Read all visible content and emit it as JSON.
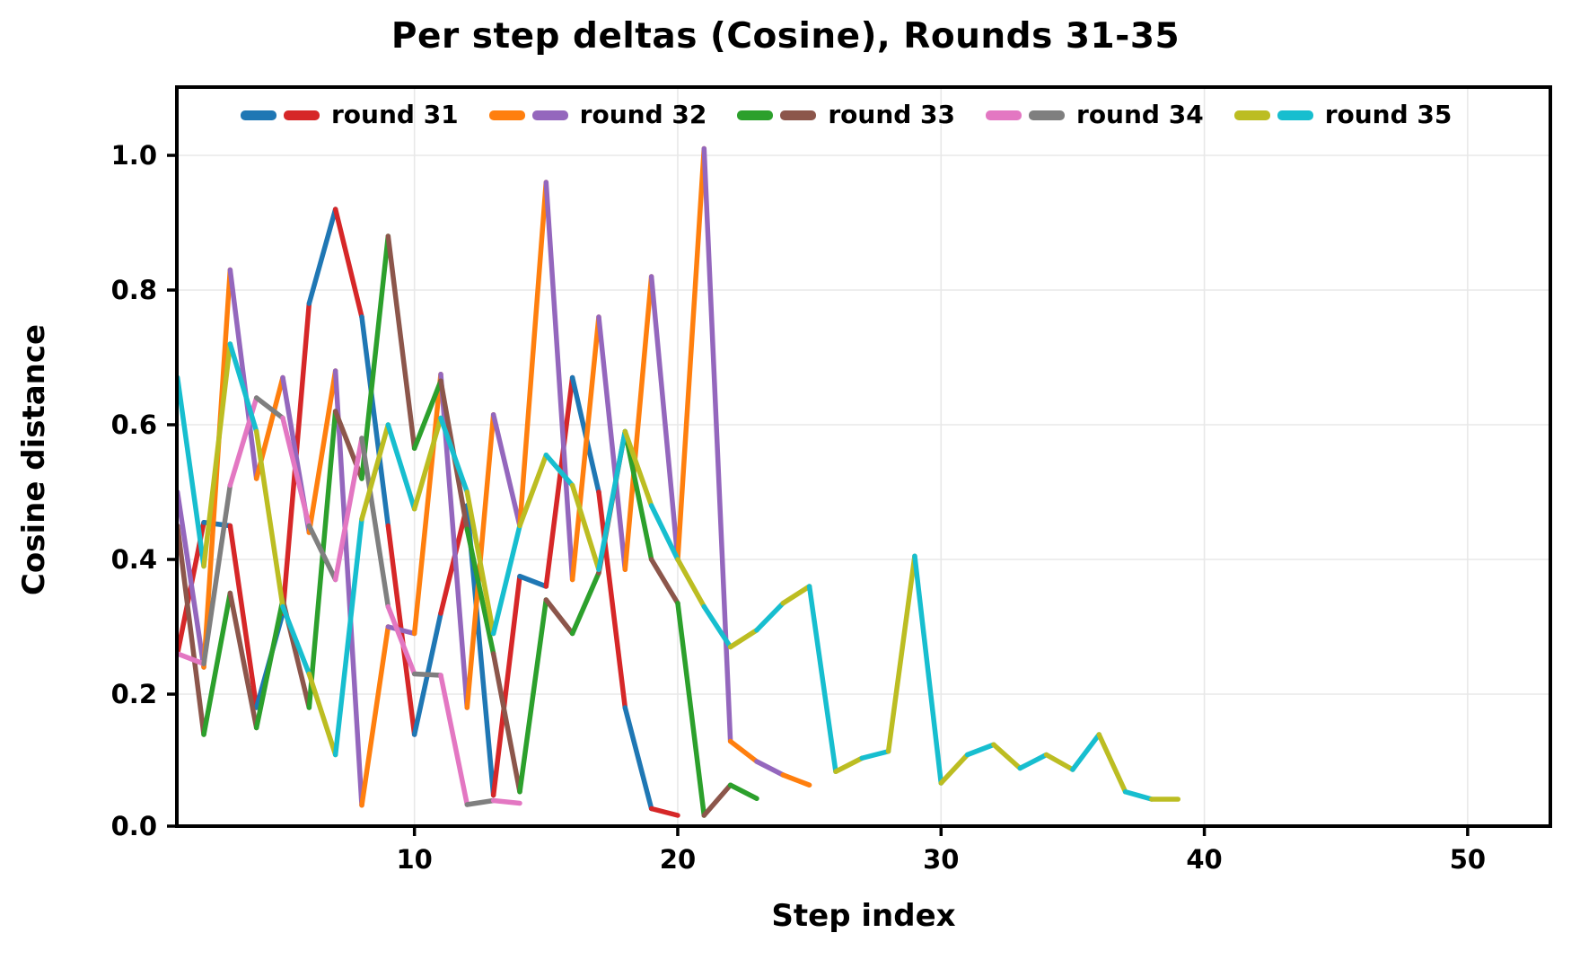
{
  "title": "Per step deltas (Cosine), Rounds 31-35",
  "axes": {
    "xlabel": "Step index",
    "ylabel": "Cosine distance"
  },
  "chart_data": {
    "type": "line",
    "title": "Per step deltas (Cosine), Rounds 31-35",
    "xlabel": "Step index",
    "ylabel": "Cosine distance",
    "xlim": [
      1,
      53.2
    ],
    "ylim": [
      0,
      1.1
    ],
    "xticks": [
      10,
      20,
      30,
      40,
      50
    ],
    "yticks": [
      "0.0",
      "0.2",
      "0.4",
      "0.6",
      "0.8",
      "1.0"
    ],
    "grid": true,
    "grid_color": "#e8e8e8",
    "spine_color": "#000000",
    "legend_position": "top-inside",
    "x_start_step": 1,
    "note": "each round is one polyline whose segments alternate between two colors",
    "series": [
      {
        "name": "round 31",
        "colors": [
          "#1f77b4",
          "#d62728"
        ],
        "color_names": [
          "blue",
          "red"
        ],
        "phase": "even",
        "values": [
          0.26,
          0.455,
          0.45,
          0.18,
          0.32,
          0.78,
          0.92,
          0.76,
          0.45,
          0.14,
          0.32,
          0.48,
          0.05,
          0.375,
          0.36,
          0.67,
          0.5,
          0.18,
          0.03,
          0.02
        ]
      },
      {
        "name": "round 32",
        "colors": [
          "#ff7f0e",
          "#9467bd"
        ],
        "color_names": [
          "orange",
          "purple"
        ],
        "phase": "even",
        "values": [
          0.5,
          0.24,
          0.83,
          0.52,
          0.67,
          0.44,
          0.68,
          0.035,
          0.3,
          0.29,
          0.675,
          0.18,
          0.615,
          0.45,
          0.96,
          0.37,
          0.76,
          0.385,
          0.82,
          0.4,
          1.01,
          0.13,
          0.1,
          0.08,
          0.065
        ]
      },
      {
        "name": "round 33",
        "colors": [
          "#2ca02c",
          "#8c564b"
        ],
        "color_names": [
          "green",
          "brown"
        ],
        "phase": "even",
        "values": [
          0.45,
          0.14,
          0.35,
          0.15,
          0.34,
          0.18,
          0.62,
          0.52,
          0.88,
          0.565,
          0.665,
          0.445,
          0.26,
          0.055,
          0.34,
          0.29,
          0.38,
          0.59,
          0.4,
          0.335,
          0.02,
          0.065,
          0.045
        ]
      },
      {
        "name": "round 34",
        "colors": [
          "#e377c2",
          "#7f7f7f"
        ],
        "color_names": [
          "pink",
          "gray"
        ],
        "phase": "odd",
        "values": [
          0.26,
          0.245,
          0.51,
          0.64,
          0.61,
          0.45,
          0.37,
          0.58,
          0.33,
          0.23,
          0.228,
          0.036,
          0.042,
          0.038
        ]
      },
      {
        "name": "round 35",
        "colors": [
          "#bcbd22",
          "#17becf"
        ],
        "color_names": [
          "olive",
          "cyan"
        ],
        "phase": "even",
        "values": [
          0.67,
          0.39,
          0.72,
          0.59,
          0.33,
          0.23,
          0.11,
          0.46,
          0.6,
          0.475,
          0.61,
          0.5,
          0.29,
          0.45,
          0.555,
          0.51,
          0.385,
          0.59,
          0.48,
          0.4,
          0.33,
          0.27,
          0.295,
          0.335,
          0.36,
          0.085,
          0.105,
          0.115,
          0.405,
          0.068,
          0.11,
          0.125,
          0.09,
          0.11,
          0.088,
          0.14,
          0.055,
          0.044,
          0.044
        ]
      }
    ]
  },
  "style": {
    "line_width": 5.5,
    "tick_label_size": 29,
    "background": "#ffffff"
  }
}
